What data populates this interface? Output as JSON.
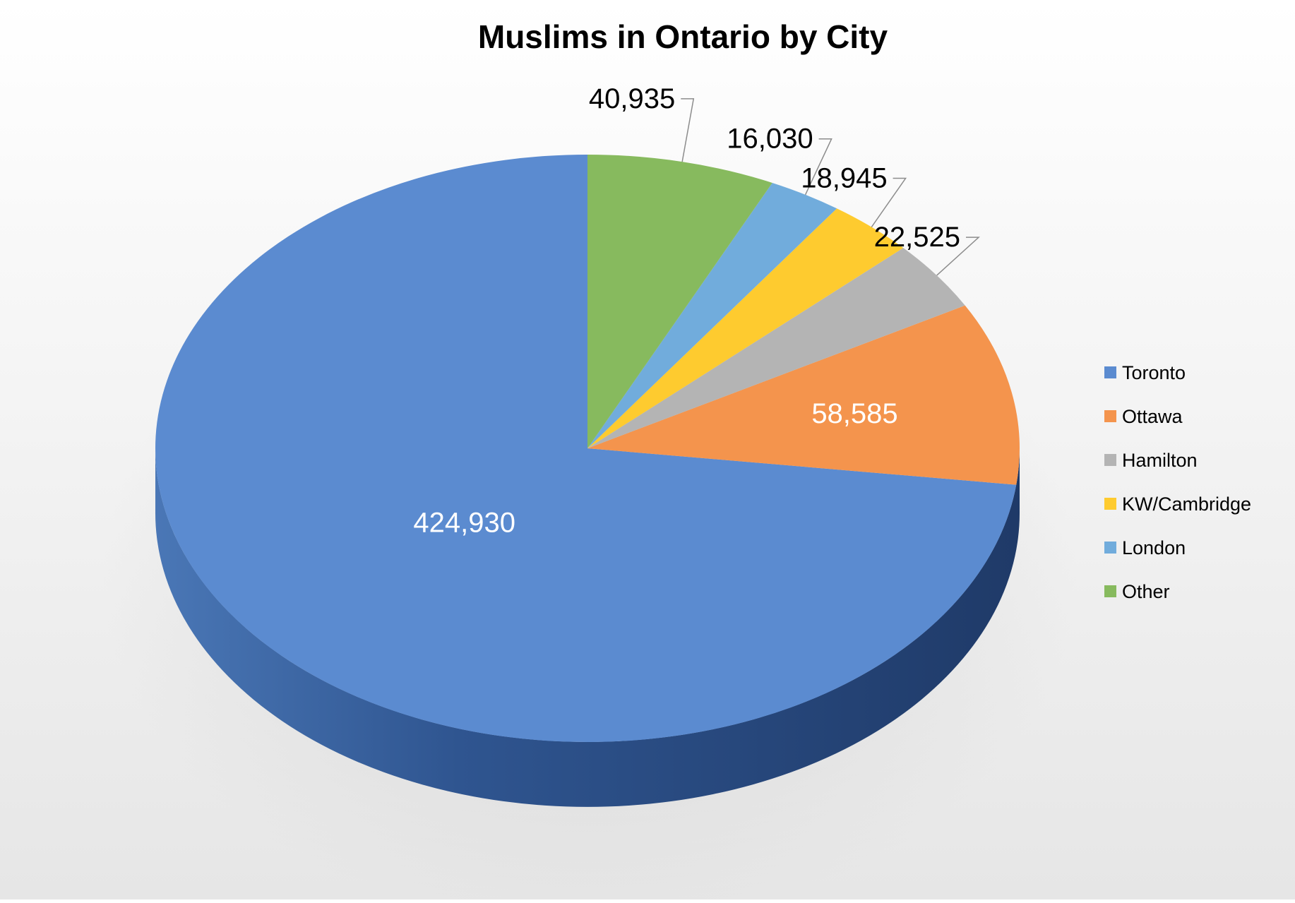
{
  "chart_data": {
    "type": "pie",
    "title": "Muslims in Ontario by City",
    "categories": [
      "Toronto",
      "Ottawa",
      "Hamilton",
      "KW/Cambridge",
      "London",
      "Other"
    ],
    "values": [
      424930,
      58585,
      22525,
      18945,
      16030,
      40935
    ],
    "value_labels": [
      "424,930",
      "58,585",
      "22,525",
      "18,945",
      "16,030",
      "40,935"
    ],
    "colors": [
      "#5B8BD0",
      "#F4944D",
      "#B4B4B4",
      "#FECB2F",
      "#71ACDC",
      "#87BA5E"
    ],
    "legend_position": "right",
    "style": "3d"
  }
}
